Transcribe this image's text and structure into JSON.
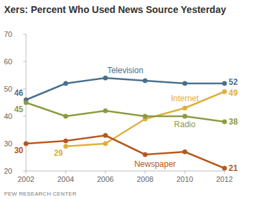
{
  "chart_data": {
    "type": "line",
    "title": "Xers: Percent Who Used News Source Yesterday",
    "source": "PEW RESEARCH CENTER",
    "x": [
      2002,
      2004,
      2006,
      2008,
      2010,
      2012
    ],
    "xlim": [
      2002,
      2012
    ],
    "xticks": [
      2002,
      2004,
      2006,
      2008,
      2010,
      2012
    ],
    "ylim": [
      20,
      70
    ],
    "yticks": [
      20,
      30,
      40,
      50,
      60,
      70
    ],
    "grid": false,
    "marker": "circle",
    "data_labels": true,
    "series": [
      {
        "name": "Television",
        "color": "#486f8e",
        "values": [
          46,
          52,
          54,
          53,
          52,
          52
        ],
        "value_labels": [
          "46",
          null,
          null,
          null,
          null,
          "52"
        ]
      },
      {
        "name": "Internet",
        "color": "#e1ad3c",
        "values": [
          null,
          29,
          30,
          39,
          43,
          49
        ],
        "value_labels": [
          null,
          "29",
          null,
          null,
          null,
          "49"
        ]
      },
      {
        "name": "Radio",
        "color": "#8c9a3f",
        "values": [
          45,
          40,
          42,
          40,
          40,
          38
        ],
        "value_labels": [
          "45",
          null,
          null,
          null,
          null,
          "38"
        ]
      },
      {
        "name": "Newspaper",
        "color": "#b5581d",
        "values": [
          30,
          31,
          33,
          26,
          27,
          21
        ],
        "value_labels": [
          "30",
          null,
          null,
          null,
          null,
          "21"
        ]
      }
    ]
  }
}
